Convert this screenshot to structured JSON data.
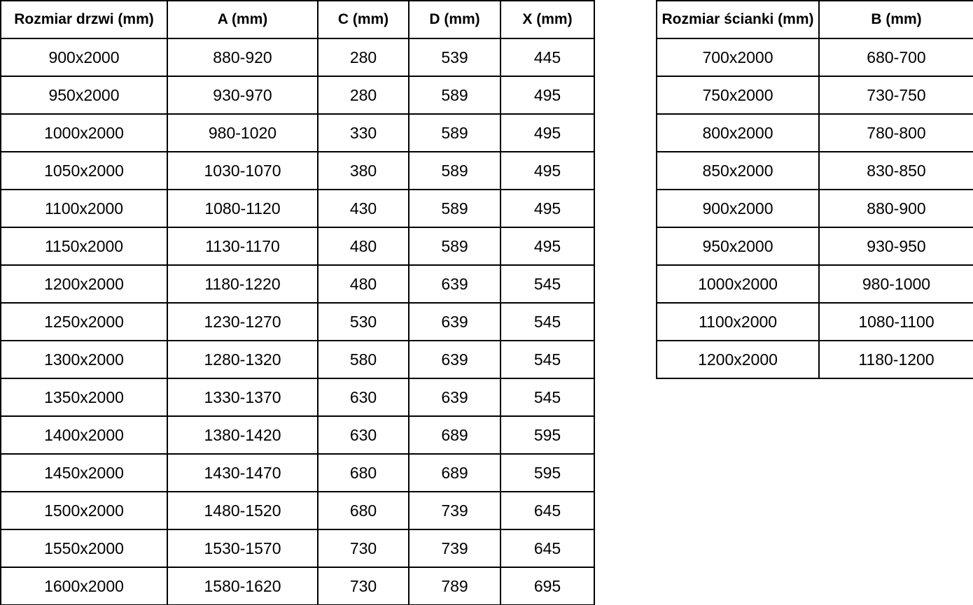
{
  "colors": {
    "background": "#ffffff",
    "border": "#000000",
    "text": "#000000"
  },
  "tables": [
    {
      "name": "door-size-table",
      "headers": [
        "Rozmiar drzwi (mm)",
        "A (mm)",
        "C (mm)",
        "D (mm)",
        "X (mm)"
      ],
      "rows": [
        [
          "900x2000",
          "880-920",
          "280",
          "539",
          "445"
        ],
        [
          "950x2000",
          "930-970",
          "280",
          "589",
          "495"
        ],
        [
          "1000x2000",
          "980-1020",
          "330",
          "589",
          "495"
        ],
        [
          "1050x2000",
          "1030-1070",
          "380",
          "589",
          "495"
        ],
        [
          "1100x2000",
          "1080-1120",
          "430",
          "589",
          "495"
        ],
        [
          "1150x2000",
          "1130-1170",
          "480",
          "589",
          "495"
        ],
        [
          "1200x2000",
          "1180-1220",
          "480",
          "639",
          "545"
        ],
        [
          "1250x2000",
          "1230-1270",
          "530",
          "639",
          "545"
        ],
        [
          "1300x2000",
          "1280-1320",
          "580",
          "639",
          "545"
        ],
        [
          "1350x2000",
          "1330-1370",
          "630",
          "639",
          "545"
        ],
        [
          "1400x2000",
          "1380-1420",
          "630",
          "689",
          "595"
        ],
        [
          "1450x2000",
          "1430-1470",
          "680",
          "689",
          "595"
        ],
        [
          "1500x2000",
          "1480-1520",
          "680",
          "739",
          "645"
        ],
        [
          "1550x2000",
          "1530-1570",
          "730",
          "739",
          "645"
        ],
        [
          "1600x2000",
          "1580-1620",
          "730",
          "789",
          "695"
        ]
      ]
    },
    {
      "name": "wall-size-table",
      "headers": [
        "Rozmiar ścianki (mm)",
        "B (mm)"
      ],
      "rows": [
        [
          "700x2000",
          "680-700"
        ],
        [
          "750x2000",
          "730-750"
        ],
        [
          "800x2000",
          "780-800"
        ],
        [
          "850x2000",
          "830-850"
        ],
        [
          "900x2000",
          "880-900"
        ],
        [
          "950x2000",
          "930-950"
        ],
        [
          "1000x2000",
          "980-1000"
        ],
        [
          "1100x2000",
          "1080-1100"
        ],
        [
          "1200x2000",
          "1180-1200"
        ]
      ]
    }
  ]
}
